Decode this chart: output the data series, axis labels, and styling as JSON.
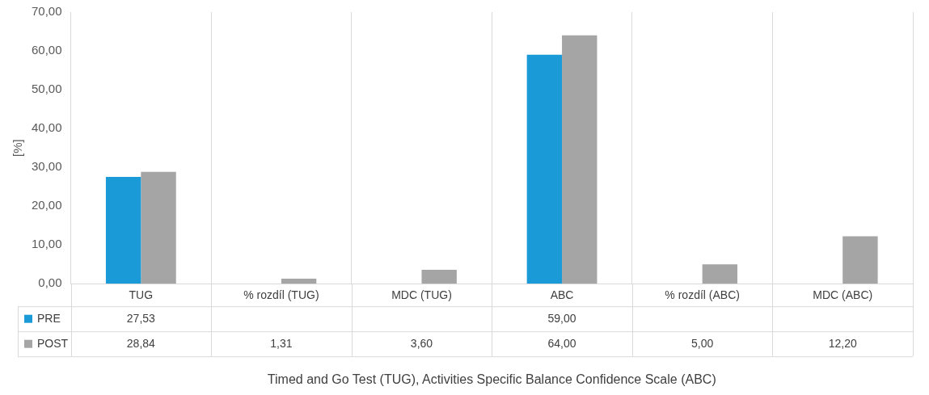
{
  "chart_data": {
    "type": "bar",
    "annotations": [
      "Timed and Go Test (TUG), Activities Specific Balance Confidence Scale (ABC)"
    ],
    "ylabel": "[%]",
    "categories": [
      "TUG",
      "% rozdíl (TUG)",
      "MDC (TUG)",
      "ABC",
      "% rozdíl (ABC)",
      "MDC (ABC)"
    ],
    "series": [
      {
        "name": "PRE",
        "color": "#1a9ad6",
        "values": [
          27.53,
          null,
          null,
          59,
          null,
          null
        ],
        "value_labels": [
          "27,53",
          null,
          null,
          "59,00",
          null,
          null
        ]
      },
      {
        "name": "POST",
        "color": "#a5a5a5",
        "values": [
          28.84,
          1.31,
          3.6,
          64,
          5,
          12.2
        ],
        "value_labels": [
          "28,84",
          "1,31",
          "3,60",
          "64,00",
          "5,00",
          "12,20"
        ]
      }
    ],
    "ylim": [
      0,
      70
    ],
    "yticks": [
      {
        "value": 0,
        "label": "0,00"
      },
      {
        "value": 10,
        "label": "10,00"
      },
      {
        "value": 20,
        "label": "20,00"
      },
      {
        "value": 30,
        "label": "30,00"
      },
      {
        "value": 40,
        "label": "40,00"
      },
      {
        "value": 50,
        "label": "50,00"
      },
      {
        "value": 60,
        "label": "60,00"
      },
      {
        "value": 70,
        "label": "70,00"
      }
    ],
    "grid": "x",
    "legend": "bottom"
  }
}
